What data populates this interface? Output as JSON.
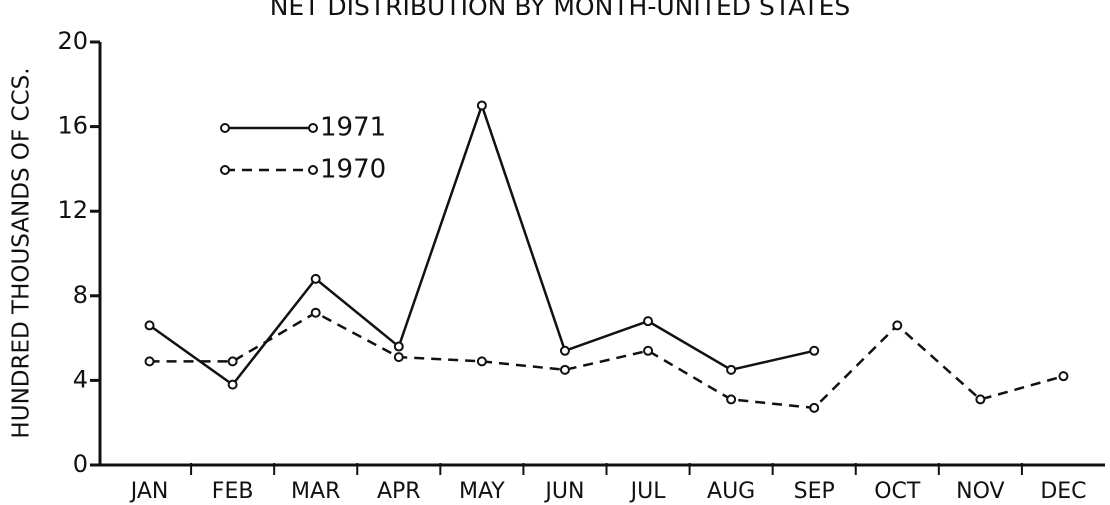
{
  "chart_data": {
    "type": "line",
    "title": "NET DISTRIBUTION BY MONTH-UNITED STATES",
    "y_label": "HUNDRED THOUSANDS OF CCS.",
    "categories": [
      "JAN",
      "FEB",
      "MAR",
      "APR",
      "MAY",
      "JUN",
      "JUL",
      "AUG",
      "SEP",
      "OCT",
      "NOV",
      "DEC"
    ],
    "series": [
      {
        "name": "1971",
        "color": "#111111",
        "line_style": "solid",
        "values": [
          6.6,
          3.8,
          8.8,
          5.6,
          17,
          5.4,
          6.8,
          4.5,
          5.4,
          null,
          null,
          null
        ]
      },
      {
        "name": "1970",
        "color": "#111111",
        "line_style": "dashed",
        "values": [
          4.9,
          4.9,
          7.2,
          5.1,
          4.9,
          4.5,
          5.4,
          3.1,
          2.7,
          6.6,
          3.1,
          4.2
        ]
      }
    ],
    "ylim": [
      0,
      20
    ],
    "yticks": [
      0,
      4,
      8,
      12,
      16,
      20
    ]
  }
}
